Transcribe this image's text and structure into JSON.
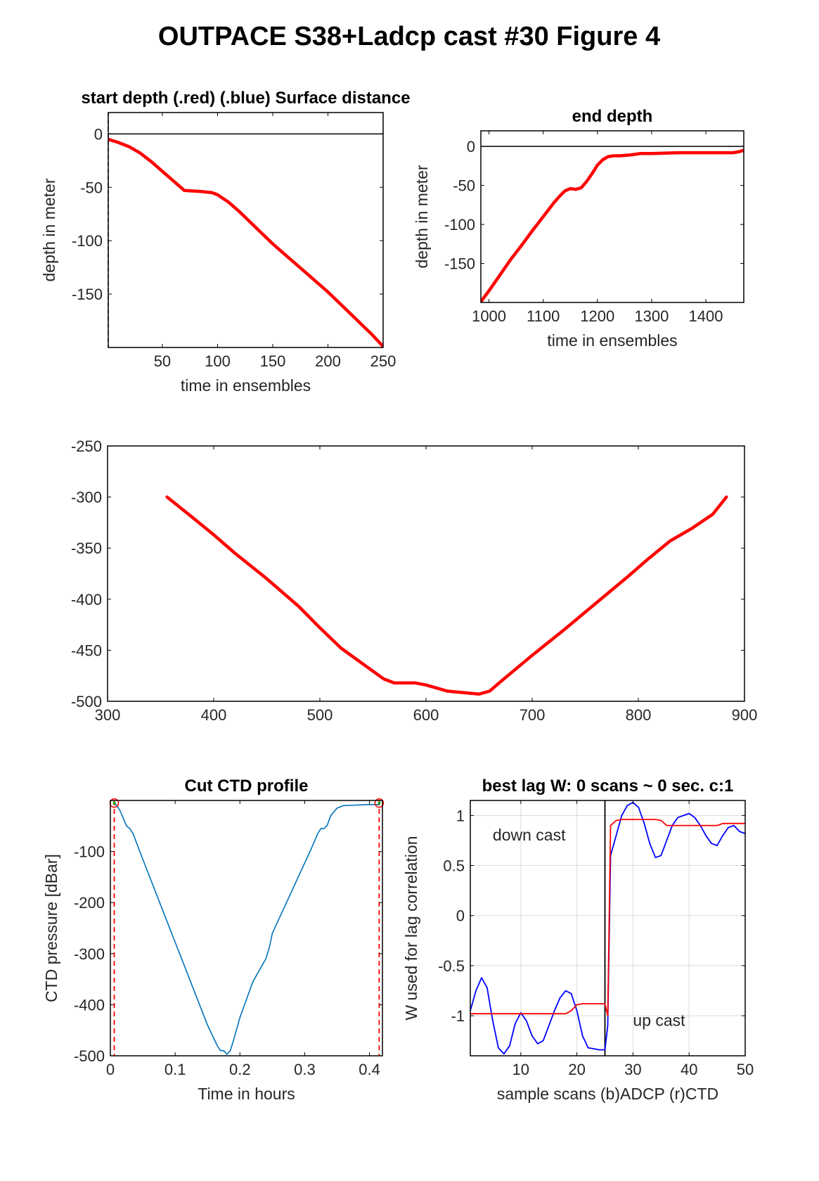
{
  "figure": {
    "title": "OUTPACE S38+Ladcp cast #30   Figure 4"
  },
  "chart_data": [
    {
      "id": "start-depth",
      "type": "line",
      "title": "start depth (.red) (.blue) Surface distance",
      "xlabel": "time in ensembles",
      "ylabel": "depth in meter",
      "xlim": [
        1,
        250
      ],
      "ylim": [
        -200,
        20
      ],
      "xticks": [
        50,
        100,
        150,
        200,
        250
      ],
      "yticks": [
        0,
        -50,
        -100,
        -150
      ],
      "grid": false,
      "reference_lines": [
        {
          "orientation": "horizontal",
          "value": 0,
          "color": "#000000"
        },
        {
          "orientation": "vertical",
          "value": 1,
          "color": "#000000",
          "style": "dashed"
        }
      ],
      "series": [
        {
          "color": "#ff0000",
          "x": [
            1,
            10,
            20,
            30,
            40,
            50,
            60,
            70,
            85,
            95,
            100,
            110,
            120,
            130,
            140,
            150,
            160,
            170,
            180,
            190,
            200,
            210,
            220,
            230,
            240,
            250
          ],
          "y": [
            -5,
            -8,
            -12,
            -18,
            -26,
            -35,
            -44,
            -53,
            -54,
            -55,
            -57,
            -64,
            -73,
            -83,
            -93,
            -103,
            -112,
            -121,
            -130,
            -139,
            -148,
            -158,
            -168,
            -178,
            -188,
            -199
          ]
        }
      ]
    },
    {
      "id": "end-depth",
      "type": "line",
      "title": "end depth",
      "xlabel": "time in ensembles",
      "ylabel": "depth in meter",
      "xlim": [
        985,
        1470
      ],
      "ylim": [
        -200,
        20
      ],
      "xticks": [
        1000,
        1100,
        1200,
        1300,
        1400
      ],
      "yticks": [
        0,
        -50,
        -100,
        -150
      ],
      "grid": false,
      "reference_lines": [
        {
          "orientation": "horizontal",
          "value": 0,
          "color": "#000000"
        }
      ],
      "series": [
        {
          "color": "#ff0000",
          "x": [
            985,
            1000,
            1020,
            1040,
            1060,
            1080,
            1100,
            1120,
            1130,
            1140,
            1150,
            1160,
            1170,
            1180,
            1190,
            1200,
            1210,
            1220,
            1230,
            1240,
            1260,
            1280,
            1300,
            1350,
            1400,
            1450,
            1460,
            1470
          ],
          "y": [
            -199,
            -185,
            -165,
            -145,
            -127,
            -108,
            -90,
            -72,
            -64,
            -57,
            -54,
            -55,
            -53,
            -45,
            -35,
            -24,
            -17,
            -13,
            -12,
            -12,
            -11,
            -9,
            -9,
            -8,
            -8,
            -8,
            -7,
            -5
          ]
        }
      ]
    },
    {
      "id": "middle-profile",
      "type": "line",
      "title": "",
      "xlabel": "",
      "ylabel": "",
      "xlim": [
        300,
        900
      ],
      "ylim": [
        -500,
        -250
      ],
      "xticks": [
        300,
        400,
        500,
        600,
        700,
        800,
        900
      ],
      "yticks": [
        -250,
        -300,
        -350,
        -400,
        -450,
        -500
      ],
      "grid": false,
      "series": [
        {
          "color": "#ff0000",
          "x": [
            356,
            380,
            400,
            420,
            450,
            480,
            500,
            520,
            540,
            560,
            570,
            590,
            600,
            620,
            640,
            650,
            660,
            670,
            700,
            730,
            760,
            790,
            810,
            830,
            850,
            870,
            883
          ],
          "y": [
            -300,
            -320,
            -337,
            -355,
            -380,
            -407,
            -428,
            -448,
            -463,
            -478,
            -482,
            -482,
            -484,
            -490,
            -492,
            -493,
            -490,
            -481,
            -455,
            -430,
            -404,
            -378,
            -360,
            -343,
            -331,
            -317,
            -300
          ]
        }
      ]
    },
    {
      "id": "cut-ctd-profile",
      "type": "line",
      "title": "Cut CTD profile",
      "xlabel": "Time in hours",
      "ylabel": "CTD pressure [dBar]",
      "xlim": [
        0,
        0.42
      ],
      "ylim": [
        -500,
        0
      ],
      "xticks": [
        0,
        0.1,
        0.2,
        0.3,
        0.4
      ],
      "yticks": [
        -100,
        -200,
        -300,
        -400,
        -500
      ],
      "grid": false,
      "cut_lines": [
        0.006,
        0.415
      ],
      "cut_markers": [
        {
          "x": 0.006,
          "y": -5
        },
        {
          "x": 0.415,
          "y": -5
        }
      ],
      "series": [
        {
          "color": "#0072bd",
          "x": [
            0.006,
            0.01,
            0.015,
            0.02,
            0.025,
            0.03,
            0.035,
            0.05,
            0.07,
            0.09,
            0.11,
            0.13,
            0.15,
            0.165,
            0.17,
            0.175,
            0.18,
            0.185,
            0.19,
            0.2,
            0.22,
            0.24,
            0.245,
            0.25,
            0.27,
            0.29,
            0.31,
            0.32,
            0.325,
            0.33,
            0.335,
            0.34,
            0.35,
            0.36,
            0.38,
            0.4,
            0.415
          ],
          "y": [
            -5,
            -10,
            -20,
            -35,
            -50,
            -55,
            -65,
            -115,
            -180,
            -245,
            -310,
            -375,
            -440,
            -480,
            -490,
            -490,
            -497,
            -490,
            -470,
            -425,
            -355,
            -310,
            -290,
            -260,
            -205,
            -150,
            -95,
            -65,
            -55,
            -55,
            -48,
            -30,
            -15,
            -10,
            -9,
            -8,
            -8
          ]
        }
      ]
    },
    {
      "id": "best-lag",
      "type": "line",
      "title": "best lag W: 0 scans ~ 0 sec.  c:1",
      "xlabel": "sample scans (b)ADCP (r)CTD",
      "ylabel": "W used for lag correlation",
      "xlim": [
        1,
        50
      ],
      "ylim": [
        -1.4,
        1.15
      ],
      "xticks": [
        10,
        20,
        30,
        40,
        50
      ],
      "yticks": [
        1,
        0.5,
        0,
        -0.5,
        -1
      ],
      "grid": true,
      "vline": 25,
      "annotations": [
        {
          "text": "down cast",
          "x": 5,
          "y": 0.75
        },
        {
          "text": "up cast",
          "x": 30,
          "y": -1.1
        }
      ],
      "series": [
        {
          "color": "#0000ff",
          "x": [
            1,
            2,
            3,
            4,
            5,
            6,
            7,
            8,
            9,
            10,
            11,
            12,
            13,
            14,
            15,
            16,
            17,
            18,
            19,
            20,
            21,
            22,
            23,
            24,
            25,
            25.5,
            26,
            27,
            28,
            29,
            30,
            31,
            32,
            33,
            34,
            35,
            36,
            37,
            38,
            39,
            40,
            41,
            42,
            43,
            44,
            45,
            46,
            47,
            48,
            49,
            50
          ],
          "y": [
            -0.95,
            -0.75,
            -0.62,
            -0.72,
            -1.05,
            -1.32,
            -1.38,
            -1.3,
            -1.08,
            -0.97,
            -1.05,
            -1.2,
            -1.28,
            -1.25,
            -1.1,
            -0.95,
            -0.82,
            -0.75,
            -0.78,
            -0.95,
            -1.2,
            -1.32,
            -1.33,
            -1.34,
            -1.34,
            -1.1,
            0.6,
            0.8,
            1.0,
            1.1,
            1.13,
            1.08,
            0.92,
            0.72,
            0.58,
            0.6,
            0.75,
            0.9,
            0.98,
            1.0,
            1.02,
            0.98,
            0.9,
            0.8,
            0.72,
            0.7,
            0.8,
            0.88,
            0.9,
            0.84,
            0.82
          ]
        },
        {
          "color": "#ff0000",
          "x": [
            1,
            5,
            10,
            15,
            18,
            19,
            20,
            21,
            22,
            23,
            24,
            25,
            25.5,
            26,
            27,
            28,
            30,
            32,
            34,
            35,
            36,
            38,
            40,
            42,
            44,
            45,
            46,
            48,
            50
          ],
          "y": [
            -0.98,
            -0.98,
            -0.98,
            -0.98,
            -0.98,
            -0.95,
            -0.89,
            -0.88,
            -0.88,
            -0.88,
            -0.88,
            -0.88,
            -1.0,
            0.9,
            0.95,
            0.96,
            0.96,
            0.96,
            0.96,
            0.95,
            0.9,
            0.9,
            0.9,
            0.9,
            0.9,
            0.9,
            0.92,
            0.92,
            0.92
          ]
        }
      ]
    }
  ]
}
